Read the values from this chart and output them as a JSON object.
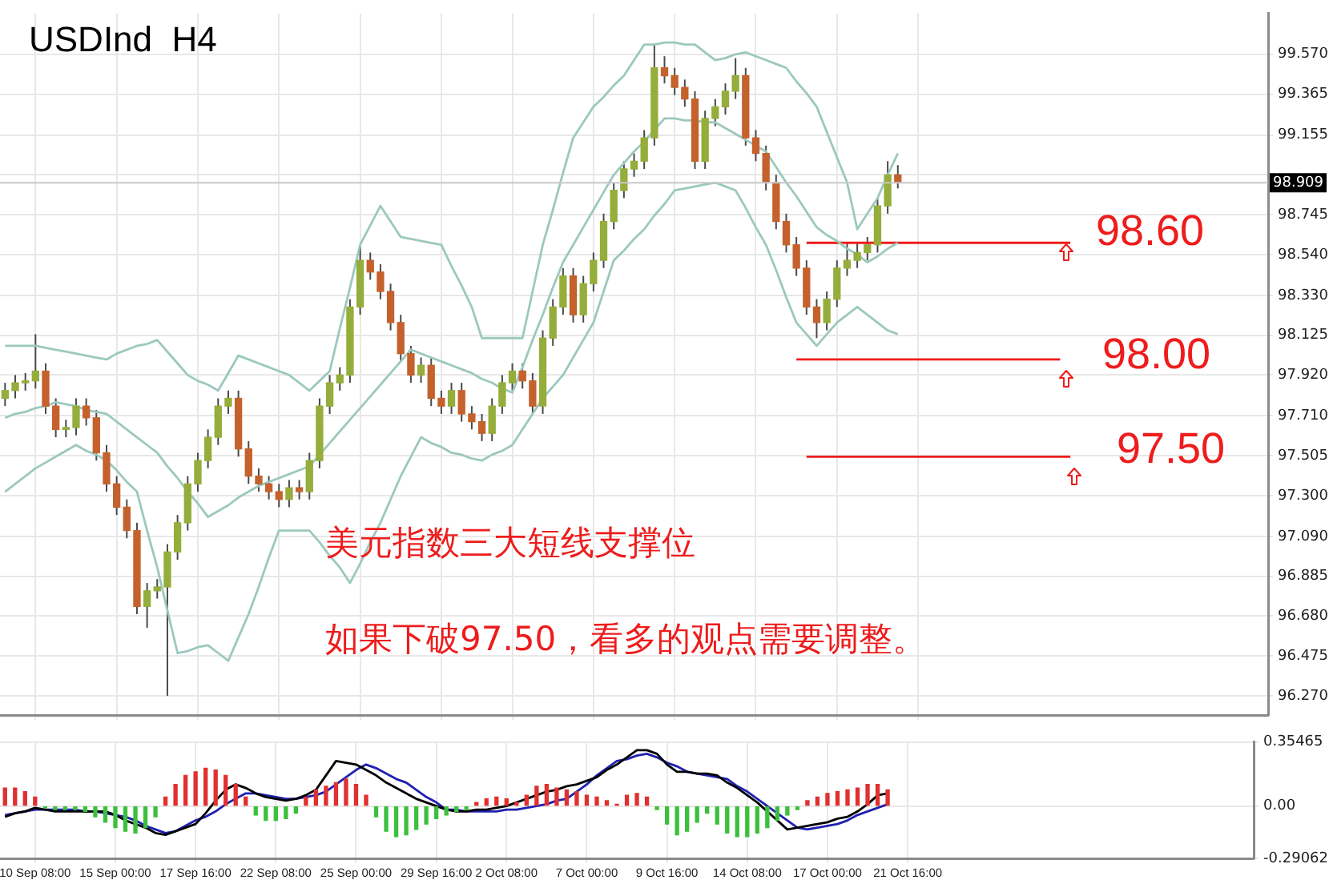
{
  "chart_data": [
    {
      "type": "candlestick",
      "title": "USDInd  H4",
      "tick_labels": "y",
      "grid": true,
      "categories": [
        null,
        null,
        null,
        null,
        null,
        null,
        null,
        null,
        null,
        null,
        null,
        null,
        null,
        null,
        null,
        null,
        null,
        null,
        null,
        null,
        null,
        null,
        null,
        null,
        null,
        null,
        null,
        null,
        null,
        null,
        null,
        null,
        null,
        null,
        null,
        null,
        null,
        null,
        null,
        null,
        null,
        null,
        null,
        null,
        null,
        null,
        null,
        null,
        null,
        null,
        null,
        null,
        null,
        null,
        null,
        null,
        null,
        null,
        null,
        null,
        null,
        null,
        null,
        null,
        null,
        null,
        null,
        null,
        null,
        null,
        null,
        null,
        null,
        null,
        null,
        null,
        null,
        null,
        null,
        null,
        null,
        null,
        null,
        null,
        null,
        null,
        null,
        null,
        null,
        null,
        null,
        null,
        null,
        null,
        null,
        null,
        null,
        null,
        null,
        null,
        null,
        null,
        null,
        null,
        null,
        null,
        null,
        null,
        null,
        null,
        null,
        null,
        null,
        null,
        null,
        null,
        null,
        null,
        null,
        null,
        null,
        null,
        null,
        null,
        null
      ],
      "ohlc": [
        [
          97.8,
          97.88,
          97.76,
          97.84
        ],
        [
          97.84,
          97.92,
          97.8,
          97.88
        ],
        [
          97.88,
          97.93,
          97.84,
          97.89
        ],
        [
          97.89,
          98.13,
          97.85,
          97.94
        ],
        [
          97.94,
          97.98,
          97.72,
          97.76
        ],
        [
          97.76,
          97.8,
          97.6,
          97.64
        ],
        [
          97.64,
          97.69,
          97.6,
          97.65
        ],
        [
          97.65,
          97.8,
          97.61,
          97.76
        ],
        [
          97.76,
          97.8,
          97.66,
          97.7
        ],
        [
          97.7,
          97.74,
          97.48,
          97.52
        ],
        [
          97.52,
          97.56,
          97.32,
          97.36
        ],
        [
          97.36,
          97.4,
          97.2,
          97.24
        ],
        [
          97.24,
          97.28,
          97.08,
          97.12
        ],
        [
          97.12,
          97.16,
          96.69,
          96.73
        ],
        [
          96.73,
          96.85,
          96.62,
          96.81
        ],
        [
          96.81,
          96.87,
          96.77,
          96.83
        ],
        [
          96.83,
          97.05,
          96.27,
          97.01
        ],
        [
          97.01,
          97.2,
          96.97,
          97.16
        ],
        [
          97.16,
          97.4,
          97.12,
          97.36
        ],
        [
          97.36,
          97.52,
          97.32,
          97.48
        ],
        [
          97.48,
          97.64,
          97.44,
          97.6
        ],
        [
          97.6,
          97.8,
          97.56,
          97.76
        ],
        [
          97.76,
          97.84,
          97.72,
          97.8
        ],
        [
          97.8,
          97.84,
          97.5,
          97.54
        ],
        [
          97.54,
          97.58,
          97.36,
          97.4
        ],
        [
          97.4,
          97.44,
          97.32,
          97.36
        ],
        [
          97.36,
          97.4,
          97.28,
          97.32
        ],
        [
          97.32,
          97.36,
          97.24,
          97.28
        ],
        [
          97.28,
          97.38,
          97.24,
          97.34
        ],
        [
          97.34,
          97.38,
          97.28,
          97.32
        ],
        [
          97.32,
          97.52,
          97.28,
          97.48
        ],
        [
          97.48,
          97.8,
          97.44,
          97.76
        ],
        [
          97.76,
          97.92,
          97.72,
          97.88
        ],
        [
          97.88,
          97.96,
          97.84,
          97.92
        ],
        [
          97.92,
          98.31,
          97.88,
          98.27
        ],
        [
          98.27,
          98.58,
          98.23,
          98.51
        ],
        [
          98.51,
          98.55,
          98.41,
          98.45
        ],
        [
          98.45,
          98.49,
          98.31,
          98.35
        ],
        [
          98.35,
          98.39,
          98.15,
          98.19
        ],
        [
          98.19,
          98.23,
          97.99,
          98.03
        ],
        [
          98.03,
          98.07,
          97.88,
          97.92
        ],
        [
          97.92,
          98.01,
          97.88,
          97.97
        ],
        [
          97.97,
          98.01,
          97.76,
          97.8
        ],
        [
          97.8,
          97.84,
          97.72,
          97.76
        ],
        [
          97.76,
          97.88,
          97.72,
          97.84
        ],
        [
          97.84,
          97.88,
          97.68,
          97.72
        ],
        [
          97.72,
          97.76,
          97.64,
          97.68
        ],
        [
          97.68,
          97.72,
          97.58,
          97.62
        ],
        [
          97.62,
          97.8,
          97.58,
          97.76
        ],
        [
          97.76,
          97.92,
          97.72,
          97.88
        ],
        [
          97.88,
          97.98,
          97.84,
          97.94
        ],
        [
          97.94,
          97.98,
          97.85,
          97.89
        ],
        [
          97.89,
          97.93,
          97.72,
          97.76
        ],
        [
          97.76,
          98.15,
          97.72,
          98.11
        ],
        [
          98.11,
          98.31,
          98.07,
          98.27
        ],
        [
          98.27,
          98.47,
          98.23,
          98.43
        ],
        [
          98.43,
          98.47,
          98.19,
          98.23
        ],
        [
          98.23,
          98.43,
          98.19,
          98.39
        ],
        [
          98.39,
          98.55,
          98.35,
          98.51
        ],
        [
          98.51,
          98.75,
          98.47,
          98.71
        ],
        [
          98.71,
          98.91,
          98.67,
          98.87
        ],
        [
          98.87,
          99.02,
          98.83,
          98.98
        ],
        [
          98.98,
          99.06,
          98.94,
          99.02
        ],
        [
          99.02,
          99.18,
          98.98,
          99.14
        ],
        [
          99.14,
          99.62,
          99.1,
          99.5
        ],
        [
          99.5,
          99.56,
          99.42,
          99.46
        ],
        [
          99.46,
          99.5,
          99.36,
          99.4
        ],
        [
          99.4,
          99.44,
          99.3,
          99.34
        ],
        [
          99.34,
          99.38,
          98.98,
          99.02
        ],
        [
          99.02,
          99.28,
          98.98,
          99.24
        ],
        [
          99.24,
          99.34,
          99.2,
          99.3
        ],
        [
          99.3,
          99.42,
          99.26,
          99.38
        ],
        [
          99.38,
          99.55,
          99.34,
          99.46
        ],
        [
          99.46,
          99.5,
          99.1,
          99.14
        ],
        [
          99.14,
          99.18,
          99.02,
          99.06
        ],
        [
          99.06,
          99.1,
          98.87,
          98.91
        ],
        [
          98.91,
          98.95,
          98.67,
          98.71
        ],
        [
          98.71,
          98.75,
          98.55,
          98.59
        ],
        [
          98.59,
          98.63,
          98.43,
          98.47
        ],
        [
          98.47,
          98.51,
          98.23,
          98.27
        ],
        [
          98.27,
          98.31,
          98.11,
          98.19
        ],
        [
          98.19,
          98.35,
          98.15,
          98.31
        ],
        [
          98.31,
          98.51,
          98.27,
          98.47
        ],
        [
          98.47,
          98.6,
          98.43,
          98.51
        ],
        [
          98.51,
          98.6,
          98.47,
          98.55
        ],
        [
          98.55,
          98.63,
          98.51,
          98.59
        ],
        [
          98.59,
          98.83,
          98.55,
          98.79
        ],
        [
          98.79,
          99.02,
          98.75,
          98.95
        ],
        [
          98.95,
          99.0,
          98.88,
          98.91
        ],
        null,
        null,
        null,
        null,
        null,
        null,
        null,
        null,
        null,
        null,
        null,
        null,
        null,
        null,
        null,
        null,
        null,
        null,
        null,
        null,
        null,
        null,
        null,
        null,
        null,
        null,
        null,
        null,
        null,
        null,
        null,
        null,
        null,
        null,
        null,
        null
      ],
      "series": [
        {
          "type": "line",
          "color": "#9cc8be",
          "values": [
            98.07,
            98.07,
            98.07,
            98.07,
            98.06,
            98.05,
            98.04,
            98.03,
            98.02,
            98.01,
            98.0,
            98.03,
            98.05,
            98.07,
            98.08,
            98.1,
            98.04,
            97.98,
            97.92,
            97.89,
            97.87,
            97.84,
            97.93,
            98.02,
            98.0,
            97.98,
            97.96,
            97.94,
            97.92,
            97.88,
            97.84,
            97.89,
            97.94,
            98.16,
            98.37,
            98.59,
            98.69,
            98.79,
            98.71,
            98.63,
            98.62,
            98.61,
            98.6,
            98.59,
            98.48,
            98.38,
            98.27,
            98.11,
            98.11,
            98.11,
            98.11,
            98.11,
            98.35,
            98.59,
            98.77,
            98.96,
            99.14,
            99.22,
            99.3,
            99.35,
            99.41,
            99.46,
            99.54,
            99.62,
            99.62,
            99.63,
            99.63,
            99.62,
            99.62,
            99.58,
            99.54,
            99.55,
            99.57,
            99.58,
            99.56,
            99.54,
            99.52,
            99.5,
            99.43,
            99.37,
            99.3,
            99.17,
            99.04,
            98.91,
            98.67,
            98.75,
            98.83,
            98.95,
            99.06,
            null,
            null,
            null,
            null,
            null,
            null,
            null,
            null,
            null,
            null,
            null,
            null,
            null,
            null,
            null,
            null,
            null,
            null,
            null,
            null,
            null,
            null,
            null,
            null,
            null,
            null,
            null,
            null,
            null,
            null,
            null,
            null,
            null,
            null,
            null,
            null
          ]
        },
        {
          "type": "line",
          "color": "#9cc8be",
          "values": [
            97.7,
            97.72,
            97.73,
            97.75,
            97.76,
            97.78,
            97.77,
            97.76,
            97.74,
            97.73,
            97.72,
            97.68,
            97.64,
            97.6,
            97.56,
            97.52,
            97.45,
            97.39,
            97.32,
            97.26,
            97.19,
            97.22,
            97.25,
            97.29,
            97.32,
            97.35,
            97.37,
            97.39,
            97.41,
            97.43,
            97.45,
            97.51,
            97.57,
            97.63,
            97.69,
            97.75,
            97.81,
            97.87,
            97.93,
            97.99,
            98.05,
            98.03,
            98.01,
            97.99,
            97.97,
            97.95,
            97.93,
            97.9,
            97.88,
            97.85,
            97.83,
            97.96,
            98.1,
            98.23,
            98.37,
            98.5,
            98.59,
            98.68,
            98.77,
            98.86,
            98.95,
            99.01,
            99.07,
            99.12,
            99.18,
            99.24,
            99.24,
            99.23,
            99.23,
            99.22,
            99.22,
            99.19,
            99.16,
            99.13,
            99.1,
            99.07,
            98.99,
            98.91,
            98.84,
            98.76,
            98.68,
            98.64,
            98.61,
            98.57,
            98.54,
            98.5,
            98.53,
            98.57,
            98.6,
            null,
            null,
            null,
            null,
            null,
            null,
            null,
            null,
            null,
            null,
            null,
            null,
            null,
            null,
            null,
            null,
            null,
            null,
            null,
            null,
            null,
            null,
            null,
            null,
            null,
            null,
            null,
            null,
            null,
            null,
            null,
            null,
            null,
            null,
            null,
            null
          ]
        },
        {
          "type": "line",
          "color": "#9cc8be",
          "values": [
            97.32,
            97.36,
            97.4,
            97.44,
            97.47,
            97.5,
            97.53,
            97.56,
            97.53,
            97.51,
            97.48,
            97.43,
            97.37,
            97.32,
            97.12,
            96.93,
            96.71,
            96.49,
            96.5,
            96.52,
            96.53,
            96.49,
            96.45,
            96.57,
            96.69,
            96.83,
            96.98,
            97.12,
            97.12,
            97.12,
            97.12,
            97.06,
            96.99,
            96.93,
            96.85,
            96.95,
            97.06,
            97.16,
            97.28,
            97.4,
            97.5,
            97.6,
            97.57,
            97.55,
            97.52,
            97.51,
            97.49,
            97.48,
            97.51,
            97.53,
            97.56,
            97.64,
            97.72,
            97.8,
            97.86,
            97.92,
            98.01,
            98.1,
            98.19,
            98.35,
            98.51,
            98.56,
            98.62,
            98.67,
            98.74,
            98.8,
            98.87,
            98.88,
            98.89,
            98.9,
            98.91,
            98.89,
            98.87,
            98.78,
            98.68,
            98.59,
            98.46,
            98.32,
            98.19,
            98.13,
            98.07,
            98.13,
            98.19,
            98.23,
            98.27,
            98.23,
            98.19,
            98.15,
            98.13,
            null,
            null,
            null,
            null,
            null,
            null,
            null,
            null,
            null,
            null,
            null,
            null,
            null,
            null,
            null,
            null,
            null,
            null,
            null,
            null,
            null,
            null,
            null,
            null,
            null,
            null,
            null,
            null,
            null,
            null,
            null,
            null,
            null,
            null,
            null,
            null
          ]
        },
        {
          "type": "line",
          "color": "#ee1c1c",
          "values": [
            null,
            null,
            null,
            null,
            null,
            null,
            null,
            null,
            null,
            null,
            null,
            null,
            null,
            null,
            null,
            null,
            null,
            null,
            null,
            null,
            null,
            null,
            null,
            null,
            null,
            null,
            null,
            null,
            null,
            null,
            null,
            null,
            null,
            null,
            null,
            null,
            null,
            null,
            null,
            null,
            null,
            null,
            null,
            null,
            null,
            null,
            null,
            null,
            null,
            null,
            null,
            null,
            null,
            null,
            null,
            null,
            null,
            null,
            null,
            null,
            null,
            null,
            null,
            null,
            null,
            null,
            null,
            null,
            null,
            null,
            null,
            null,
            null,
            null,
            null,
            null,
            null,
            null,
            null,
            98.6,
            98.6,
            98.6,
            98.6,
            98.6,
            98.6,
            98.6,
            98.6,
            98.6,
            98.6,
            98.6,
            98.6,
            98.6,
            98.6,
            98.6,
            98.6,
            98.6,
            98.6,
            98.6,
            98.6,
            98.6,
            98.6,
            98.6,
            98.6,
            98.6,
            98.6,
            98.6,
            null,
            null,
            null,
            null,
            null,
            null,
            null,
            null,
            null,
            null,
            null,
            null,
            null,
            null,
            null,
            null,
            null,
            null,
            null
          ]
        },
        {
          "type": "line",
          "color": "#ee1c1c",
          "values": [
            null,
            null,
            null,
            null,
            null,
            null,
            null,
            null,
            null,
            null,
            null,
            null,
            null,
            null,
            null,
            null,
            null,
            null,
            null,
            null,
            null,
            null,
            null,
            null,
            null,
            null,
            null,
            null,
            null,
            null,
            null,
            null,
            null,
            null,
            null,
            null,
            null,
            null,
            null,
            null,
            null,
            null,
            null,
            null,
            null,
            null,
            null,
            null,
            null,
            null,
            null,
            null,
            null,
            null,
            null,
            null,
            null,
            null,
            null,
            null,
            null,
            null,
            null,
            null,
            null,
            null,
            null,
            null,
            null,
            null,
            null,
            null,
            null,
            null,
            null,
            null,
            null,
            null,
            98.0,
            98.0,
            98.0,
            98.0,
            98.0,
            98.0,
            98.0,
            98.0,
            98.0,
            98.0,
            98.0,
            98.0,
            98.0,
            98.0,
            98.0,
            98.0,
            98.0,
            98.0,
            98.0,
            98.0,
            98.0,
            98.0,
            98.0,
            98.0,
            98.0,
            98.0,
            98.0,
            null,
            null,
            null,
            null,
            null,
            null,
            null,
            null,
            null,
            null,
            null,
            null,
            null,
            null,
            null,
            null,
            null,
            null,
            null,
            null
          ]
        },
        {
          "type": "line",
          "color": "#ee1c1c",
          "values": [
            null,
            null,
            null,
            null,
            null,
            null,
            null,
            null,
            null,
            null,
            null,
            null,
            null,
            null,
            null,
            null,
            null,
            null,
            null,
            null,
            null,
            null,
            null,
            null,
            null,
            null,
            null,
            null,
            null,
            null,
            null,
            null,
            null,
            null,
            null,
            null,
            null,
            null,
            null,
            null,
            null,
            null,
            null,
            null,
            null,
            null,
            null,
            null,
            null,
            null,
            null,
            null,
            null,
            null,
            null,
            null,
            null,
            null,
            null,
            null,
            null,
            null,
            null,
            null,
            null,
            null,
            null,
            null,
            null,
            null,
            null,
            null,
            null,
            null,
            null,
            null,
            null,
            null,
            null,
            97.5,
            97.5,
            97.5,
            97.5,
            97.5,
            97.5,
            97.5,
            97.5,
            97.5,
            97.5,
            97.5,
            97.5,
            97.5,
            97.5,
            97.5,
            97.5,
            97.5,
            97.5,
            97.5,
            97.5,
            97.5,
            97.5,
            97.5,
            97.5,
            97.5,
            97.5,
            97.5,
            null,
            null,
            null,
            null,
            null,
            null,
            null,
            null,
            null,
            null,
            null,
            null,
            null,
            null,
            null,
            null,
            null,
            null,
            null
          ]
        }
      ],
      "ylim": [
        96.17,
        99.78
      ],
      "yticks": [
        {
          "value": 96.27,
          "label": "96.270"
        },
        {
          "value": 96.475,
          "label": "96.475"
        },
        {
          "value": 96.68,
          "label": "96.680"
        },
        {
          "value": 96.885,
          "label": "96.885"
        },
        {
          "value": 97.09,
          "label": "97.090"
        },
        {
          "value": 97.3,
          "label": "97.300"
        },
        {
          "value": 97.505,
          "label": "97.505"
        },
        {
          "value": 97.71,
          "label": "97.710"
        },
        {
          "value": 97.92,
          "label": "97.920"
        },
        {
          "value": 98.125,
          "label": "98.125"
        },
        {
          "value": 98.33,
          "label": "98.330"
        },
        {
          "value": 98.54,
          "label": "98.540"
        },
        {
          "value": 98.745,
          "label": "98.745"
        },
        {
          "value": 98.95,
          "label": null
        },
        {
          "value": 99.155,
          "label": "99.155"
        },
        {
          "value": 99.365,
          "label": "99.365"
        },
        {
          "value": 99.57,
          "label": "99.570"
        }
      ],
      "ref_lines": [
        {
          "axis": "y",
          "value": 98.909,
          "label": "98.909",
          "color": "#c8c8c8"
        }
      ],
      "annotations": [
        "美元指数三大短线支撑位",
        "如果下破97.50，看多的观点需要调整。",
        "98.60",
        "98.00",
        "97.50"
      ]
    },
    {
      "type": "bar",
      "grid": true,
      "categories": [
        null,
        null,
        null,
        "10 Sep 08:00",
        null,
        null,
        null,
        null,
        null,
        null,
        null,
        "15 Sep 00:00",
        null,
        null,
        null,
        null,
        null,
        null,
        null,
        "17 Sep 16:00",
        null,
        null,
        null,
        null,
        null,
        null,
        null,
        "22 Sep 08:00",
        null,
        null,
        null,
        null,
        null,
        null,
        null,
        "25 Sep 00:00",
        null,
        null,
        null,
        null,
        null,
        null,
        null,
        "29 Sep 16:00",
        null,
        null,
        null,
        null,
        null,
        null,
        "2 Oct 08:00",
        null,
        null,
        null,
        null,
        null,
        null,
        null,
        "7 Oct 00:00",
        null,
        null,
        null,
        null,
        null,
        null,
        null,
        "9 Oct 16:00",
        null,
        null,
        null,
        null,
        null,
        null,
        null,
        "14 Oct 08:00",
        null,
        null,
        null,
        null,
        null,
        null,
        null,
        "17 Oct 00:00",
        null,
        null,
        null,
        null,
        null,
        null,
        null,
        "21 Oct 16:00",
        null,
        null,
        null,
        null,
        null,
        null,
        null,
        null,
        null,
        null,
        null,
        null,
        null,
        null,
        null,
        null,
        null,
        null,
        null,
        null,
        null,
        null,
        null,
        null,
        null,
        null,
        null,
        null,
        null,
        null,
        null,
        null,
        null,
        null
      ],
      "values": [
        0.1,
        0.1,
        0.08,
        0.05,
        -0.01,
        -0.02,
        -0.02,
        -0.02,
        -0.03,
        -0.06,
        -0.09,
        -0.12,
        -0.14,
        -0.15,
        -0.12,
        -0.06,
        0.05,
        0.12,
        0.17,
        0.19,
        0.21,
        0.2,
        0.17,
        0.12,
        0.05,
        -0.05,
        -0.08,
        -0.08,
        -0.07,
        -0.04,
        0.05,
        0.09,
        0.11,
        0.13,
        0.15,
        0.12,
        0.06,
        -0.06,
        -0.14,
        -0.17,
        -0.16,
        -0.13,
        -0.1,
        -0.07,
        -0.05,
        -0.03,
        -0.02,
        0.02,
        0.04,
        0.05,
        0.04,
        0.02,
        0.06,
        0.11,
        0.12,
        0.1,
        0.09,
        0.08,
        0.06,
        0.05,
        0.03,
        0.01,
        0.06,
        0.07,
        0.05,
        -0.02,
        -0.1,
        -0.16,
        -0.14,
        -0.09,
        -0.04,
        -0.1,
        -0.15,
        -0.17,
        -0.17,
        -0.15,
        -0.12,
        -0.08,
        -0.05,
        -0.02,
        0.03,
        0.05,
        0.07,
        0.08,
        0.09,
        0.1,
        0.12,
        0.12,
        0.09,
        null,
        null,
        null,
        null,
        null,
        null,
        null,
        null,
        null,
        null,
        null,
        null,
        null,
        null,
        null,
        null,
        null,
        null,
        null,
        null,
        null,
        null,
        null,
        null,
        null,
        null,
        null,
        null,
        null,
        null,
        null,
        null,
        null,
        null,
        null,
        null
      ],
      "colors": [
        "#e03030",
        "#e03030",
        "#e03030",
        "#e03030",
        "#3cc03c",
        "#3cc03c",
        "#3cc03c",
        "#3cc03c",
        "#3cc03c",
        "#3cc03c",
        "#3cc03c",
        "#3cc03c",
        "#3cc03c",
        "#3cc03c",
        "#3cc03c",
        "#3cc03c",
        "#e03030",
        "#e03030",
        "#e03030",
        "#e03030",
        "#e03030",
        "#e03030",
        "#e03030",
        "#e03030",
        "#e03030",
        "#3cc03c",
        "#3cc03c",
        "#3cc03c",
        "#3cc03c",
        "#3cc03c",
        "#e03030",
        "#e03030",
        "#e03030",
        "#e03030",
        "#e03030",
        "#e03030",
        "#e03030",
        "#3cc03c",
        "#3cc03c",
        "#3cc03c",
        "#3cc03c",
        "#3cc03c",
        "#3cc03c",
        "#3cc03c",
        "#3cc03c",
        "#3cc03c",
        "#3cc03c",
        "#e03030",
        "#e03030",
        "#e03030",
        "#e03030",
        "#e03030",
        "#e03030",
        "#e03030",
        "#e03030",
        "#e03030",
        "#e03030",
        "#e03030",
        "#e03030",
        "#e03030",
        "#e03030",
        "#e03030",
        "#e03030",
        "#e03030",
        "#e03030",
        "#3cc03c",
        "#3cc03c",
        "#3cc03c",
        "#3cc03c",
        "#3cc03c",
        "#3cc03c",
        "#3cc03c",
        "#3cc03c",
        "#3cc03c",
        "#3cc03c",
        "#3cc03c",
        "#3cc03c",
        "#3cc03c",
        "#3cc03c",
        "#3cc03c",
        "#e03030",
        "#e03030",
        "#e03030",
        "#e03030",
        "#e03030",
        "#e03030",
        "#e03030",
        "#e03030",
        "#e03030",
        null,
        null,
        null,
        null,
        null,
        null,
        null,
        null,
        null,
        null,
        null,
        null,
        null,
        null,
        null,
        null,
        null,
        null,
        null,
        null,
        null,
        null,
        null,
        null,
        null,
        null,
        null,
        null,
        null,
        null,
        null,
        null,
        null,
        null,
        null,
        null
      ],
      "series": [
        {
          "type": "line",
          "color": "#000000",
          "values": [
            -0.06,
            -0.04,
            -0.03,
            -0.01,
            -0.02,
            -0.03,
            -0.03,
            -0.03,
            -0.03,
            -0.03,
            -0.03,
            -0.05,
            -0.08,
            -0.1,
            -0.12,
            -0.15,
            -0.16,
            -0.14,
            -0.12,
            -0.1,
            -0.04,
            0.03,
            0.09,
            0.12,
            0.1,
            0.07,
            0.05,
            0.04,
            0.03,
            0.04,
            0.06,
            0.09,
            0.17,
            0.25,
            0.24,
            0.23,
            0.2,
            0.17,
            0.13,
            0.1,
            0.07,
            0.04,
            0.02,
            0.0,
            -0.02,
            -0.03,
            -0.03,
            -0.02,
            -0.02,
            -0.01,
            0.0,
            0.02,
            0.04,
            0.06,
            0.08,
            0.09,
            0.11,
            0.12,
            0.14,
            0.16,
            0.2,
            0.23,
            0.27,
            0.31,
            0.31,
            0.29,
            0.23,
            0.19,
            0.19,
            0.18,
            0.18,
            0.17,
            0.13,
            0.1,
            0.06,
            0.02,
            -0.03,
            -0.08,
            -0.13,
            -0.12,
            -0.11,
            -0.1,
            -0.09,
            -0.07,
            -0.06,
            -0.03,
            0.01,
            0.06,
            0.07,
            null,
            null,
            null,
            null,
            null,
            null,
            null,
            null,
            null,
            null,
            null,
            null,
            null,
            null,
            null,
            null,
            null,
            null,
            null,
            null,
            null,
            null,
            null,
            null,
            null,
            null,
            null,
            null,
            null,
            null,
            null,
            null,
            null,
            null,
            null,
            null
          ]
        },
        {
          "type": "line",
          "color": "#2020b0",
          "values": [
            -0.05,
            -0.04,
            -0.03,
            -0.02,
            -0.02,
            -0.02,
            -0.02,
            -0.02,
            -0.03,
            -0.03,
            -0.04,
            -0.05,
            -0.06,
            -0.08,
            -0.11,
            -0.13,
            -0.15,
            -0.14,
            -0.11,
            -0.08,
            -0.06,
            -0.03,
            0.01,
            0.04,
            0.07,
            0.07,
            0.06,
            0.05,
            0.04,
            0.04,
            0.05,
            0.06,
            0.08,
            0.12,
            0.16,
            0.2,
            0.23,
            0.21,
            0.18,
            0.15,
            0.13,
            0.09,
            0.05,
            0.02,
            -0.02,
            -0.02,
            -0.03,
            -0.03,
            -0.03,
            -0.03,
            -0.02,
            -0.02,
            -0.01,
            0.0,
            0.01,
            0.03,
            0.04,
            0.08,
            0.12,
            0.17,
            0.21,
            0.25,
            0.26,
            0.28,
            0.29,
            0.27,
            0.24,
            0.22,
            0.19,
            0.18,
            0.17,
            0.16,
            0.15,
            0.11,
            0.08,
            0.04,
            0.0,
            -0.04,
            -0.08,
            -0.12,
            -0.13,
            -0.12,
            -0.11,
            -0.1,
            -0.08,
            -0.05,
            -0.03,
            -0.01,
            0.01,
            null,
            null,
            null,
            null,
            null,
            null,
            null,
            null,
            null,
            null,
            null,
            null,
            null,
            null,
            null,
            null,
            null,
            null,
            null,
            null,
            null,
            null,
            null,
            null,
            null,
            null,
            null,
            null,
            null,
            null,
            null,
            null,
            null,
            null,
            null,
            null
          ]
        }
      ],
      "ylim": [
        -0.29062,
        0.35465
      ],
      "yticks": [
        {
          "value": -0.29062,
          "label": "-0.29062"
        },
        {
          "value": 0,
          "label": "0.00"
        },
        {
          "value": 0.35465,
          "label": "0.35465"
        }
      ]
    }
  ]
}
